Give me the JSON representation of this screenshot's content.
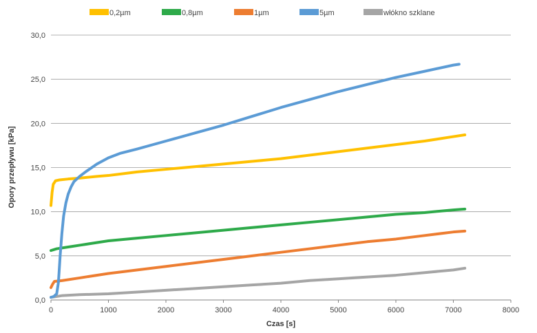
{
  "chart_data": {
    "type": "line",
    "title": "",
    "xlabel": "Czas [s]",
    "ylabel": "Opory przepływu [kPa]",
    "xlim": [
      0,
      8000
    ],
    "ylim": [
      0,
      30
    ],
    "x_ticks": [
      0,
      1000,
      2000,
      3000,
      4000,
      5000,
      6000,
      7000,
      8000
    ],
    "x_tick_labels": [
      "0",
      "1000",
      "2000",
      "3000",
      "4000",
      "5000",
      "6000",
      "7000",
      "8000"
    ],
    "y_ticks": [
      0,
      5,
      10,
      15,
      20,
      25,
      30
    ],
    "y_tick_labels": [
      "0,0",
      "5,0",
      "10,0",
      "15,0",
      "20,0",
      "25,0",
      "30,0"
    ],
    "grid": "horizontal",
    "legend_position": "top",
    "series": [
      {
        "name": "0,2µm",
        "color": "#FFC000",
        "points": [
          [
            0,
            10.7
          ],
          [
            20,
            12.2
          ],
          [
            40,
            13.1
          ],
          [
            80,
            13.5
          ],
          [
            150,
            13.6
          ],
          [
            300,
            13.7
          ],
          [
            500,
            13.8
          ],
          [
            800,
            14.0
          ],
          [
            1000,
            14.1
          ],
          [
            1500,
            14.5
          ],
          [
            2000,
            14.8
          ],
          [
            2500,
            15.1
          ],
          [
            3000,
            15.4
          ],
          [
            3500,
            15.7
          ],
          [
            4000,
            16.0
          ],
          [
            4500,
            16.4
          ],
          [
            5000,
            16.8
          ],
          [
            5500,
            17.2
          ],
          [
            6000,
            17.6
          ],
          [
            6500,
            18.0
          ],
          [
            7000,
            18.5
          ],
          [
            7200,
            18.7
          ]
        ]
      },
      {
        "name": "0,8µm",
        "color": "#2EAA4A",
        "points": [
          [
            0,
            5.6
          ],
          [
            100,
            5.8
          ],
          [
            300,
            6.0
          ],
          [
            500,
            6.2
          ],
          [
            1000,
            6.7
          ],
          [
            1500,
            7.0
          ],
          [
            2000,
            7.3
          ],
          [
            2500,
            7.6
          ],
          [
            3000,
            7.9
          ],
          [
            3500,
            8.2
          ],
          [
            4000,
            8.5
          ],
          [
            4500,
            8.8
          ],
          [
            5000,
            9.1
          ],
          [
            5500,
            9.4
          ],
          [
            6000,
            9.7
          ],
          [
            6500,
            9.9
          ],
          [
            7000,
            10.2
          ],
          [
            7200,
            10.3
          ]
        ]
      },
      {
        "name": "1µm",
        "color": "#ED7D31",
        "points": [
          [
            0,
            1.4
          ],
          [
            30,
            1.8
          ],
          [
            60,
            2.1
          ],
          [
            200,
            2.2
          ],
          [
            500,
            2.5
          ],
          [
            1000,
            3.0
          ],
          [
            1500,
            3.4
          ],
          [
            2000,
            3.8
          ],
          [
            2500,
            4.2
          ],
          [
            3000,
            4.6
          ],
          [
            3500,
            5.0
          ],
          [
            4000,
            5.4
          ],
          [
            4500,
            5.8
          ],
          [
            5000,
            6.2
          ],
          [
            5500,
            6.6
          ],
          [
            6000,
            6.9
          ],
          [
            6500,
            7.3
          ],
          [
            7000,
            7.7
          ],
          [
            7200,
            7.8
          ]
        ]
      },
      {
        "name": "5µm",
        "color": "#5B9BD5",
        "points": [
          [
            0,
            0.3
          ],
          [
            50,
            0.4
          ],
          [
            100,
            0.7
          ],
          [
            130,
            2.0
          ],
          [
            160,
            5.0
          ],
          [
            190,
            7.5
          ],
          [
            220,
            9.5
          ],
          [
            260,
            11.0
          ],
          [
            300,
            12.0
          ],
          [
            350,
            12.8
          ],
          [
            400,
            13.4
          ],
          [
            500,
            14.0
          ],
          [
            600,
            14.5
          ],
          [
            800,
            15.4
          ],
          [
            1000,
            16.1
          ],
          [
            1200,
            16.6
          ],
          [
            1500,
            17.1
          ],
          [
            2000,
            18.0
          ],
          [
            2500,
            18.9
          ],
          [
            3000,
            19.8
          ],
          [
            3500,
            20.8
          ],
          [
            4000,
            21.8
          ],
          [
            4500,
            22.7
          ],
          [
            5000,
            23.6
          ],
          [
            5500,
            24.4
          ],
          [
            6000,
            25.2
          ],
          [
            6500,
            25.9
          ],
          [
            7000,
            26.6
          ],
          [
            7100,
            26.7
          ]
        ]
      },
      {
        "name": "włókno szklane",
        "color": "#A5A5A5",
        "points": [
          [
            0,
            0.3
          ],
          [
            100,
            0.4
          ],
          [
            200,
            0.5
          ],
          [
            500,
            0.6
          ],
          [
            1000,
            0.7
          ],
          [
            1500,
            0.9
          ],
          [
            2000,
            1.1
          ],
          [
            2500,
            1.3
          ],
          [
            3000,
            1.5
          ],
          [
            3500,
            1.7
          ],
          [
            4000,
            1.9
          ],
          [
            4500,
            2.2
          ],
          [
            5000,
            2.4
          ],
          [
            5500,
            2.6
          ],
          [
            6000,
            2.8
          ],
          [
            6500,
            3.1
          ],
          [
            7000,
            3.4
          ],
          [
            7200,
            3.6
          ]
        ]
      }
    ]
  }
}
